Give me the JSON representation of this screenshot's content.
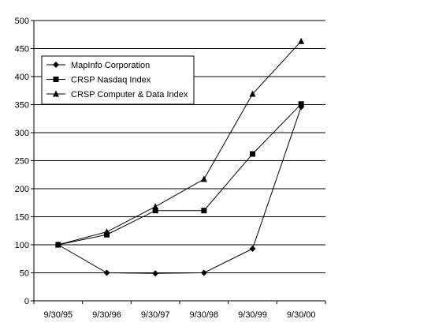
{
  "chart_data": {
    "type": "line",
    "title": "",
    "xlabel": "",
    "ylabel": "",
    "categories": [
      "9/30/95",
      "9/30/96",
      "9/30/97",
      "9/30/98",
      "9/30/99",
      "9/30/00"
    ],
    "ylim": [
      0,
      500
    ],
    "yticks": [
      0,
      50,
      100,
      150,
      200,
      250,
      300,
      350,
      400,
      450,
      500
    ],
    "grid": "horizontal",
    "legend_position": "top-left",
    "series": [
      {
        "name": "MapInfo Corporation",
        "marker": "diamond",
        "values": [
          100,
          50,
          49,
          50,
          93,
          346
        ]
      },
      {
        "name": "CRSP Nasdaq Index",
        "marker": "square",
        "values": [
          100,
          118,
          161,
          161,
          262,
          351
        ]
      },
      {
        "name": "CRSP Computer & Data Index",
        "marker": "triangle",
        "values": [
          100,
          123,
          168,
          217,
          369,
          463
        ]
      }
    ]
  }
}
